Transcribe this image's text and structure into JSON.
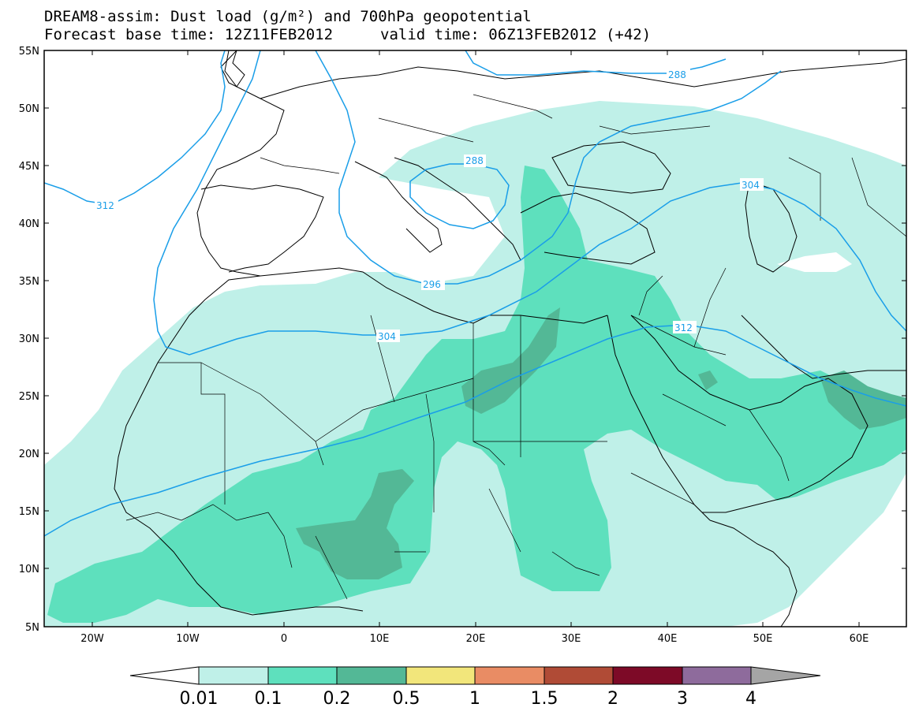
{
  "title": {
    "line1": "DREAM8-assim: Dust load (g/m²) and 700hPa geopotential",
    "line2": "Forecast base time: 12Z11FEB2012",
    "valid": "valid time: 06Z13FEB2012 (+42)"
  },
  "axes": {
    "lat_labels": [
      "55N",
      "50N",
      "45N",
      "40N",
      "35N",
      "30N",
      "25N",
      "20N",
      "15N",
      "10N",
      "5N"
    ],
    "lon_labels": [
      "20W",
      "10W",
      "0",
      "10E",
      "20E",
      "30E",
      "40E",
      "50E",
      "60E"
    ]
  },
  "contours": {
    "color": "#1a9ee8",
    "labels": [
      "288",
      "288",
      "296",
      "304",
      "304",
      "312",
      "312"
    ]
  },
  "colorbar": {
    "labels": [
      "0.01",
      "0.1",
      "0.2",
      "0.5",
      "1",
      "1.5",
      "2",
      "3",
      "4"
    ],
    "colors": [
      "#bff0e8",
      "#5ee0bd",
      "#53b896",
      "#f2e67b",
      "#e98c64",
      "#b04b36",
      "#7d0a27",
      "#8e6b9c"
    ],
    "under_color": "#ffffff",
    "over_color": "#a5a5a5"
  }
}
